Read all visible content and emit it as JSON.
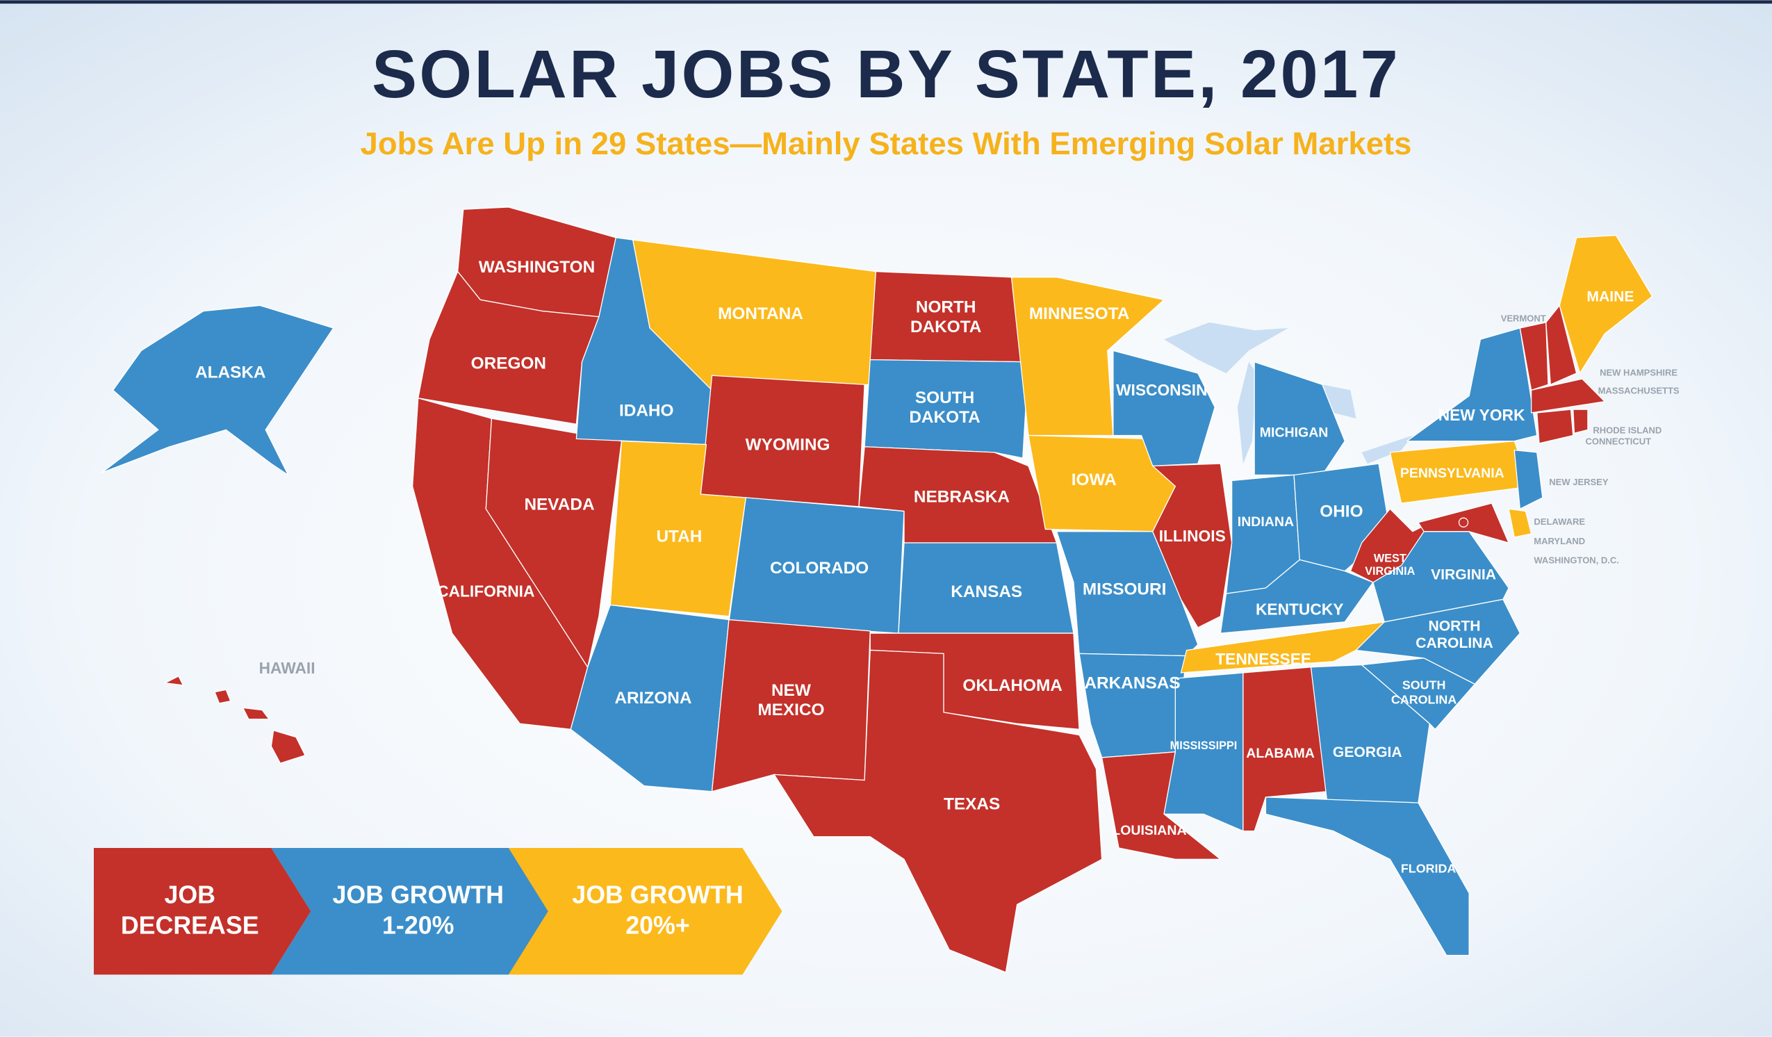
{
  "title": "SOLAR JOBS BY STATE, 2017",
  "subtitle": "Jobs Are Up in 29 States—Mainly States With Emerging Solar Markets",
  "legend": [
    {
      "lines": [
        "JOB",
        "DECREASE"
      ],
      "color": "#c3312a"
    },
    {
      "lines": [
        "JOB GROWTH",
        "1-20%"
      ],
      "color": "#3b8ec9"
    },
    {
      "lines": [
        "JOB GROWTH",
        "20%+"
      ],
      "color": "#fbb91c"
    }
  ],
  "states": [
    {
      "label": [
        "WASHINGTON"
      ],
      "group": 0
    },
    {
      "label": [
        "OREGON"
      ],
      "group": 0
    },
    {
      "label": [
        "CALIFORNIA"
      ],
      "group": 0
    },
    {
      "label": [
        "NEVADA"
      ],
      "group": 0
    },
    {
      "label": [
        "IDAHO"
      ],
      "group": 1
    },
    {
      "label": [
        "MONTANA"
      ],
      "group": 2
    },
    {
      "label": [
        "WYOMING"
      ],
      "group": 0
    },
    {
      "label": [
        "UTAH"
      ],
      "group": 2
    },
    {
      "label": [
        "COLORADO"
      ],
      "group": 1
    },
    {
      "label": [
        "ARIZONA"
      ],
      "group": 1
    },
    {
      "label": [
        "NEW",
        "MEXICO"
      ],
      "group": 0
    },
    {
      "label": [
        "NORTH",
        "DAKOTA"
      ],
      "group": 0
    },
    {
      "label": [
        "SOUTH",
        "DAKOTA"
      ],
      "group": 1
    },
    {
      "label": [
        "NEBRASKA"
      ],
      "group": 0
    },
    {
      "label": [
        "KANSAS"
      ],
      "group": 1
    },
    {
      "label": [
        "OKLAHOMA"
      ],
      "group": 0
    },
    {
      "label": [
        "TEXAS"
      ],
      "group": 0
    },
    {
      "label": [
        "MINNESOTA"
      ],
      "group": 2
    },
    {
      "label": [
        "IOWA"
      ],
      "group": 2
    },
    {
      "label": [
        "MISSOURI"
      ],
      "group": 1
    },
    {
      "label": [
        "ARKANSAS"
      ],
      "group": 1
    },
    {
      "label": [
        "LOUISIANA"
      ],
      "group": 0
    },
    {
      "label": [
        "WISCONSIN"
      ],
      "group": 1
    },
    {
      "label": [
        "ILLINOIS"
      ],
      "group": 0
    },
    {
      "label": [
        "MICHIGAN"
      ],
      "group": 1
    },
    {
      "label": [
        "INDIANA"
      ],
      "group": 1
    },
    {
      "label": [
        "OHIO"
      ],
      "group": 1
    },
    {
      "label": [
        "KENTUCKY"
      ],
      "group": 1
    },
    {
      "label": [
        "TENNESSEE"
      ],
      "group": 2
    },
    {
      "label": [
        "MISSISSIPPI"
      ],
      "group": 1
    },
    {
      "label": [
        "ALABAMA"
      ],
      "group": 0
    },
    {
      "label": [
        "GEORGIA"
      ],
      "group": 1
    },
    {
      "label": [
        "FLORIDA"
      ],
      "group": 1
    },
    {
      "label": [
        "SOUTH",
        "CAROLINA"
      ],
      "group": 1
    },
    {
      "label": [
        "NORTH",
        "CAROLINA"
      ],
      "group": 1
    },
    {
      "label": [
        "VIRGINIA"
      ],
      "group": 1
    },
    {
      "label": [
        "WEST",
        "VIRGINIA"
      ],
      "group": 0
    },
    {
      "label": [
        "PENNSYLVANIA"
      ],
      "group": 2
    },
    {
      "label": [
        "NEW YORK"
      ],
      "group": 1
    },
    {
      "label": [
        "NEW JERSEY"
      ],
      "group": 1
    },
    {
      "label": [
        "MARYLAND"
      ],
      "group": 0
    },
    {
      "label": [
        "DELAWARE"
      ],
      "group": 2
    },
    {
      "label": [
        "VERMONT"
      ],
      "group": 0
    },
    {
      "label": [
        "NEW HAMPSHIRE"
      ],
      "group": 0
    },
    {
      "label": [
        "MAINE"
      ],
      "group": 2
    },
    {
      "label": [
        "MASSACHUSETTS"
      ],
      "group": 0
    },
    {
      "label": [
        "CONNECTICUT"
      ],
      "group": 0
    },
    {
      "label": [
        "RHODE ISLAND"
      ],
      "group": 0
    },
    {
      "label": [
        "WASHINGTON, D.C."
      ],
      "group": 0
    },
    {
      "label": [
        "ALASKA"
      ],
      "group": 1
    },
    {
      "label": [
        "HAWAII"
      ],
      "group": 0
    }
  ]
}
